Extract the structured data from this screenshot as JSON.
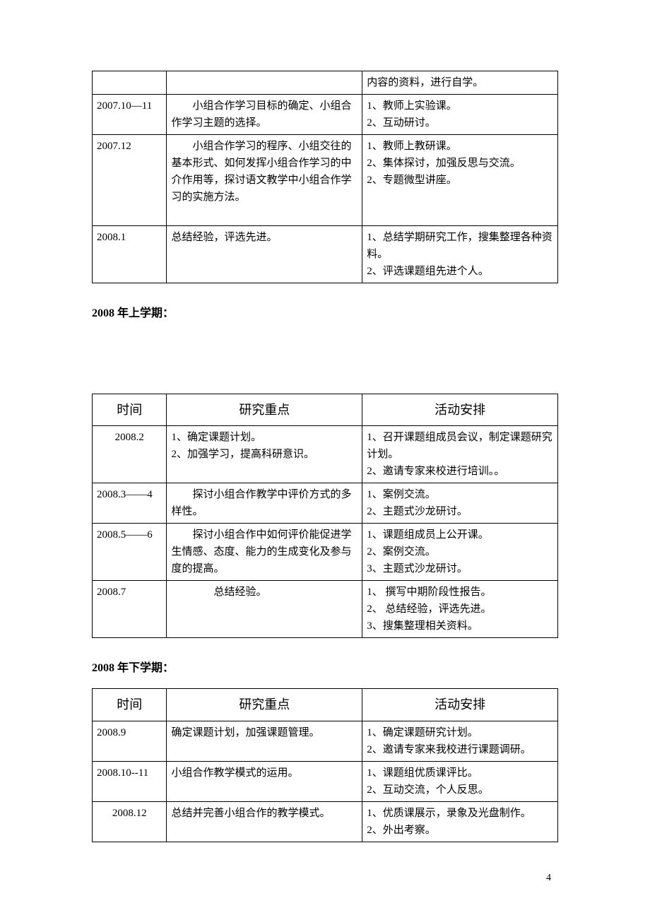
{
  "table1": {
    "rows": [
      {
        "time": "",
        "focus": "",
        "arrange": "内容的资料，进行自学。"
      },
      {
        "time": "2007.10—11",
        "focus": "　　小组合作学习目标的确定、小组合作学习主题的选择。",
        "arrange": "1、教师上实验课。\n2、互动研讨。"
      },
      {
        "time": "2007.12",
        "focus": "　　小组合作学习的程序、小组交往的基本形式、如何发挥小组合作学习的中介作用等，探讨语文教学中小组合作学习的实施方法。\n ",
        "arrange": "1、教师上教研课。\n2、集体探讨，加强反思与交流。\n2、专题微型讲座。"
      },
      {
        "time": "2008.1",
        "focus": "总结经验，评选先进。",
        "arrange": "1、总结学期研究工作，搜集整理各种资料。\n2、评选课题组先进个人。"
      }
    ]
  },
  "heading2": "2008 年上学期：",
  "table2": {
    "headers": {
      "time": "时间",
      "focus": "研究重点",
      "arrange": "活动安排"
    },
    "rows": [
      {
        "time": "2008.2",
        "time_align": "center",
        "focus": "1、确定课题计划。\n2、加强学习，提高科研意识。",
        "arrange": "1、召开课题组成员会议，制定课题研究计划。\n2、邀请专家来校进行培训。。"
      },
      {
        "time": "2008.3——4",
        "time_align": "left",
        "focus": "　　探讨小组合作教学中评价方式的多样性。",
        "arrange": "1、案例交流。\n2、主题式沙龙研讨。"
      },
      {
        "time": "2008.5——6",
        "time_align": "left",
        "focus": "　　探讨小组合作中如何评价能促进学生情感、态度、能力的生成变化及参与度的提高。",
        "arrange": "1、课题组成员上公开课。\n2、案例交流。\n3、主题式沙龙研讨。"
      },
      {
        "time": "2008.7",
        "time_align": "left",
        "focus": "　　　　总结经验。",
        "arrange": "1、 撰写中期阶段性报告。\n2、 总结经验，评选先进。\n3、搜集整理相关资料。"
      }
    ]
  },
  "heading3": "2008 年下学期：",
  "table3": {
    "headers": {
      "time": "时间",
      "focus": "研究重点",
      "arrange": "活动安排"
    },
    "rows": [
      {
        "time": "2008.9",
        "time_align": "left",
        "focus": "确定课题计划，加强课题管理。",
        "arrange": "1、确定课题研究计划。\n2、邀请专家来我校进行课题调研。"
      },
      {
        "time": "2008.10--11",
        "time_align": "left",
        "focus": "小组合作教学模式的运用。",
        "arrange": "1、课题组优质课评比。\n2、互动交流，个人反思。"
      },
      {
        "time": "2008.12",
        "time_align": "center",
        "focus": "总结并完善小组合作的教学模式。",
        "arrange": "1、优质课展示，录象及光盘制作。\n2、外出考察。"
      }
    ]
  },
  "page_number": "4"
}
